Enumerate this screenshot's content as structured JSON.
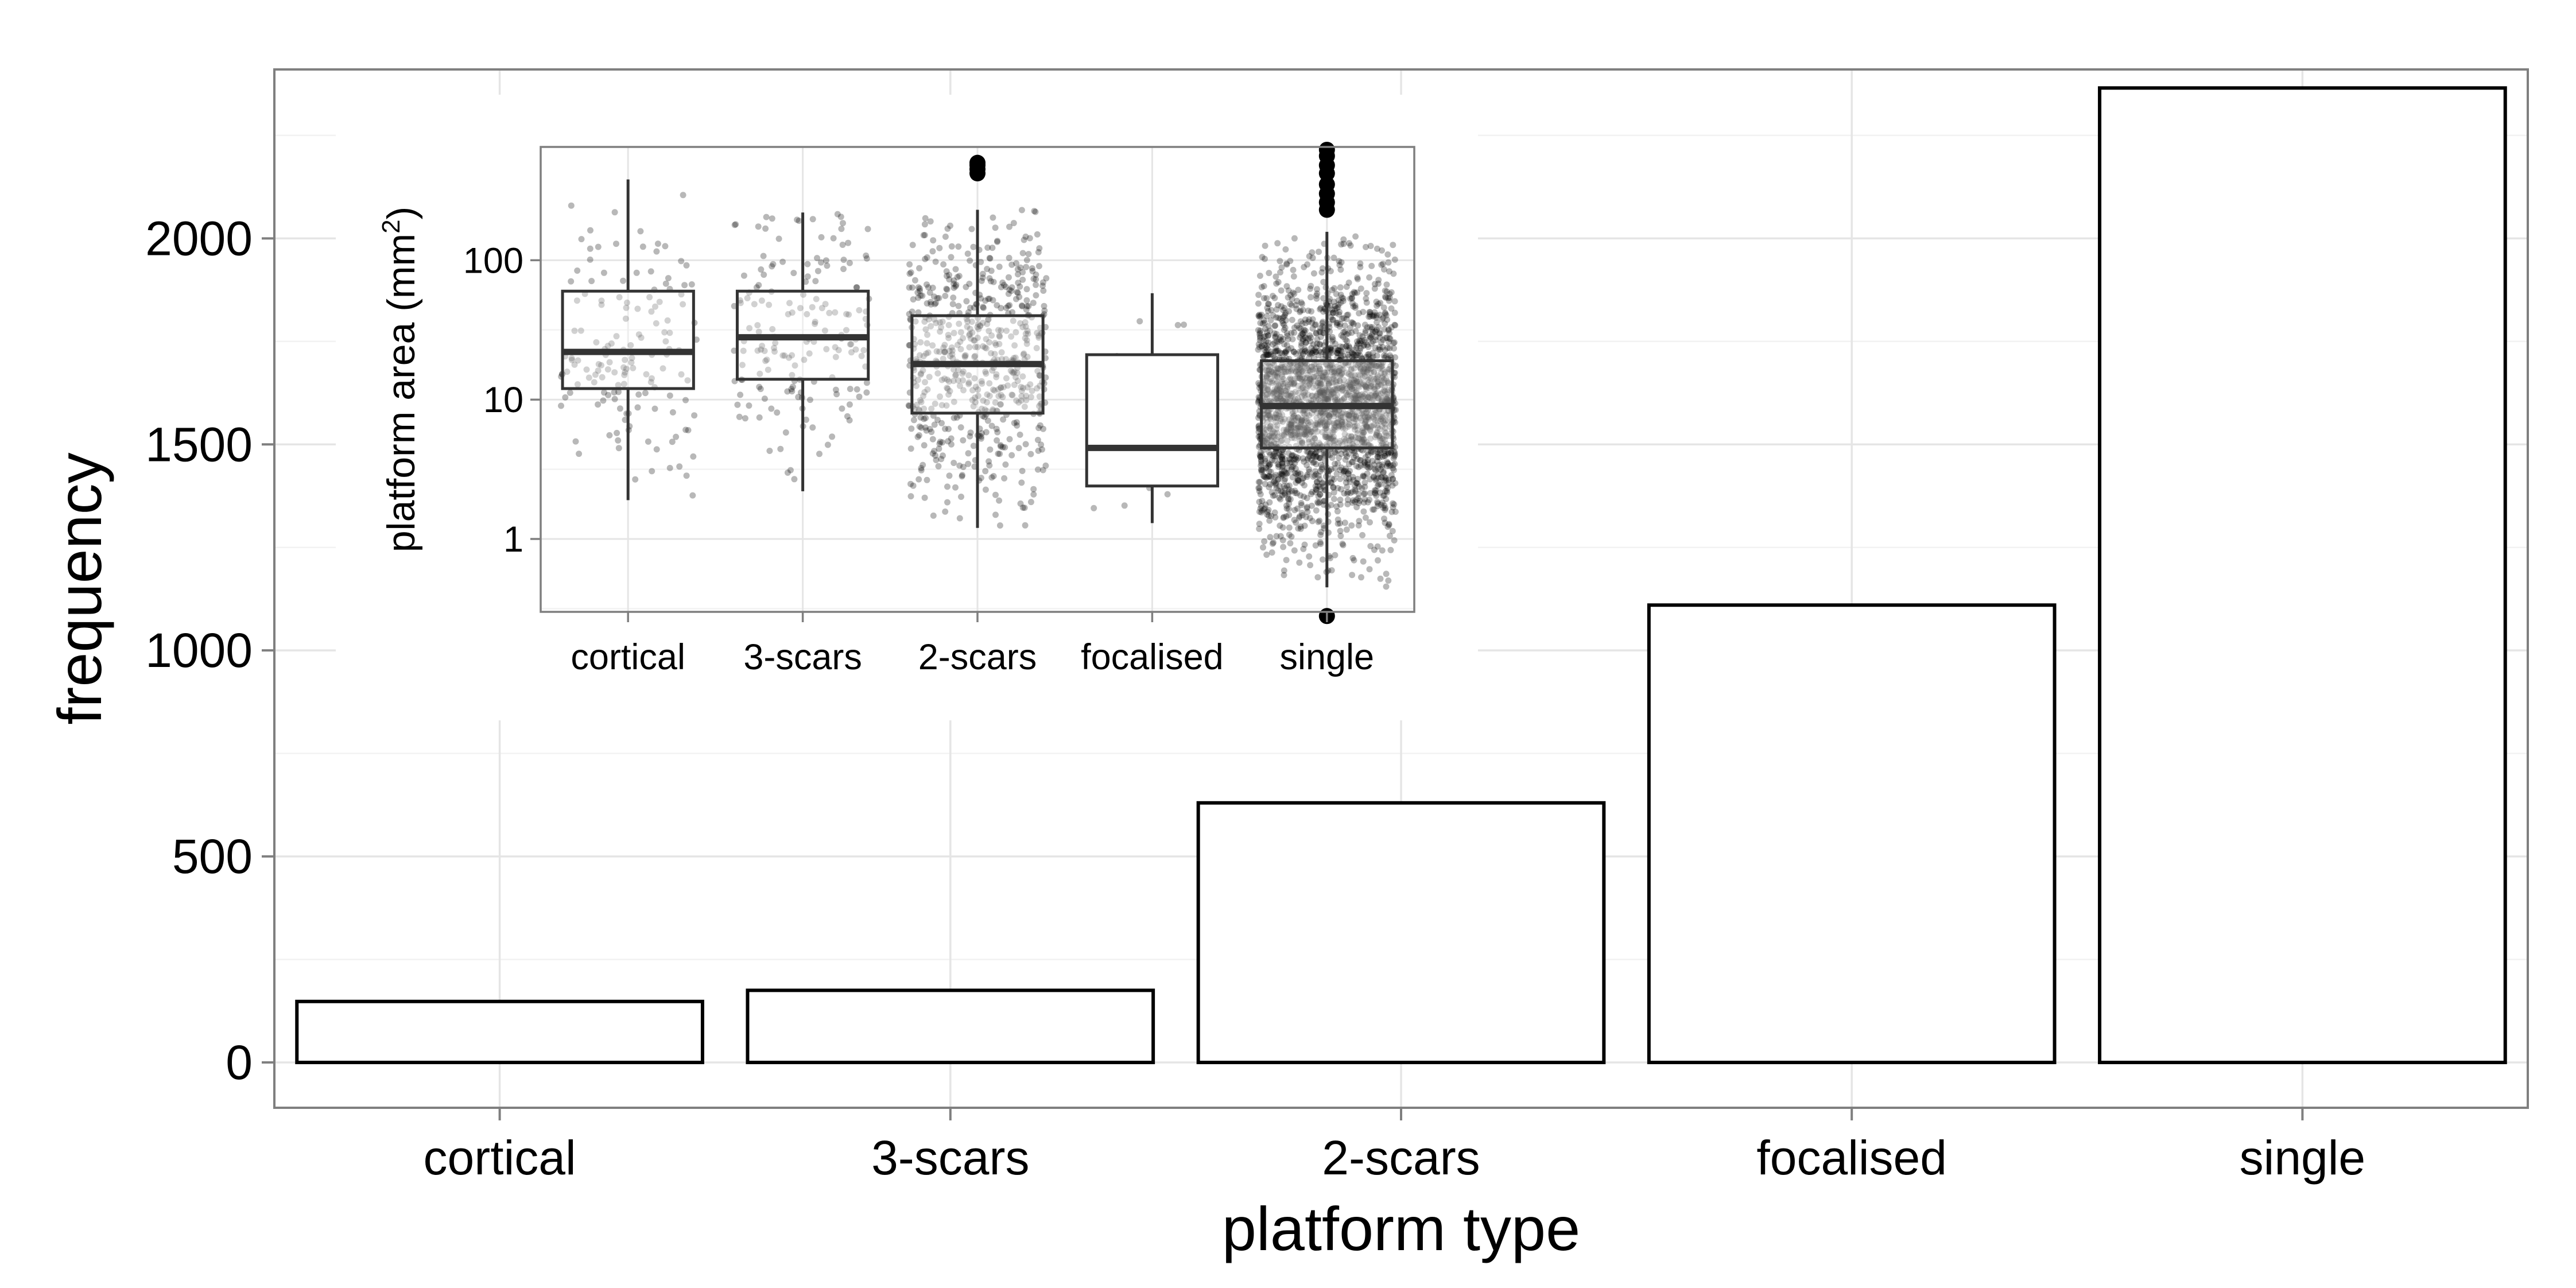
{
  "chart_data": [
    {
      "type": "bar",
      "categories": [
        "cortical",
        "3-scars",
        "2-scars",
        "focalised",
        "single"
      ],
      "values": [
        148,
        175,
        630,
        1110,
        2365
      ],
      "xlabel": "platform type",
      "ylabel": "frequency",
      "ylim": [
        -110,
        2410
      ],
      "yticks": [
        0,
        500,
        1000,
        1500,
        2000
      ],
      "ytick_labels": [
        "0",
        "500",
        "1000",
        "1500",
        "2000"
      ],
      "grid": true,
      "legend": "none",
      "colors": {
        "bar_fill": "#ffffff",
        "bar_stroke": "#000000",
        "panel_border": "#7f7f7f",
        "grid": "#ebebeb"
      }
    },
    {
      "type": "box",
      "position": "inset top-left",
      "categories": [
        "cortical",
        "3-scars",
        "2-scars",
        "focalised",
        "single"
      ],
      "scale": "log10",
      "ylim": [
        0.3,
        650
      ],
      "ylabel": "platform area (mm",
      "ylabel_superscript": "2",
      "ylabel_suffix": ")",
      "yticks": [
        1,
        10,
        100
      ],
      "ytick_labels": [
        "1",
        "10",
        "100"
      ],
      "grid": true,
      "boxes": [
        {
          "category": "cortical",
          "min": 1.9,
          "q1": 12,
          "median": 22,
          "q3": 60,
          "max": 380,
          "outliers": [],
          "n_points": 148
        },
        {
          "category": "3-scars",
          "min": 2.2,
          "q1": 14,
          "median": 28,
          "q3": 60,
          "max": 220,
          "outliers": [],
          "n_points": 175
        },
        {
          "category": "2-scars",
          "min": 1.2,
          "q1": 8,
          "median": 18,
          "q3": 40,
          "max": 230,
          "outliers": [
            420,
            450,
            480,
            500
          ],
          "n_points": 630
        },
        {
          "category": "focalised",
          "min": 1.3,
          "q1": 2.4,
          "median": 4.5,
          "q3": 21,
          "max": 58,
          "outliers": [],
          "n_points": 12
        },
        {
          "category": "single",
          "min": 0.45,
          "q1": 4.5,
          "median": 9,
          "q3": 19,
          "max": 160,
          "outliers": [
            0.28,
            230,
            260,
            300,
            350,
            420,
            480,
            560,
            620
          ],
          "n_points": 2365
        }
      ],
      "jitter_points": true,
      "colors": {
        "box_fill": "#ffffff",
        "box_stroke": "#333333",
        "points": "#000000",
        "panel_border": "#7f7f7f",
        "grid": "#ebebeb"
      }
    }
  ]
}
